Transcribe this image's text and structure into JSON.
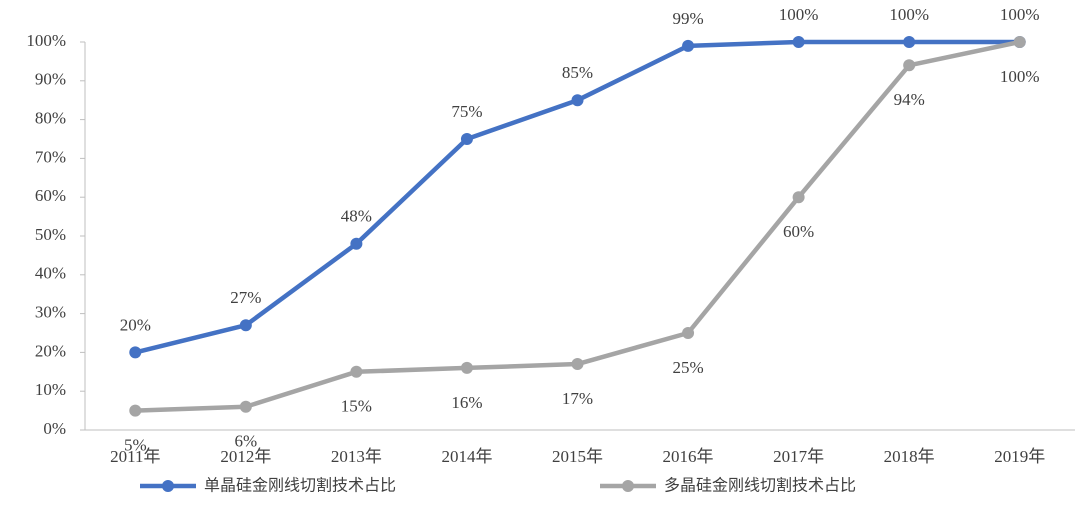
{
  "chart_data": {
    "type": "line",
    "categories": [
      "2011年",
      "2012年",
      "2013年",
      "2014年",
      "2015年",
      "2016年",
      "2017年",
      "2018年",
      "2019年"
    ],
    "series": [
      {
        "name": "单晶硅金刚线切割技术占比",
        "color": "#4472c4",
        "values": [
          20,
          27,
          48,
          75,
          85,
          99,
          100,
          100,
          100
        ],
        "value_labels": [
          "20%",
          "27%",
          "48%",
          "75%",
          "85%",
          "99%",
          "100%",
          "100%",
          "100%"
        ]
      },
      {
        "name": "多晶硅金刚线切割技术占比",
        "color": "#a5a5a5",
        "values": [
          5,
          6,
          15,
          16,
          17,
          25,
          60,
          94,
          100
        ],
        "value_labels": [
          "5%",
          "6%",
          "15%",
          "16%",
          "17%",
          "25%",
          "60%",
          "94%",
          "100%"
        ]
      }
    ],
    "ylim": [
      0,
      100
    ],
    "yticks": [
      {
        "value": 0,
        "label": "0%"
      },
      {
        "value": 10,
        "label": "10%"
      },
      {
        "value": 20,
        "label": "20%"
      },
      {
        "value": 30,
        "label": "30%"
      },
      {
        "value": 40,
        "label": "40%"
      },
      {
        "value": 50,
        "label": "50%"
      },
      {
        "value": 60,
        "label": "60%"
      },
      {
        "value": 70,
        "label": "70%"
      },
      {
        "value": 80,
        "label": "80%"
      },
      {
        "value": 90,
        "label": "90%"
      },
      {
        "value": 100,
        "label": "100%"
      }
    ],
    "legend": "bottom"
  }
}
